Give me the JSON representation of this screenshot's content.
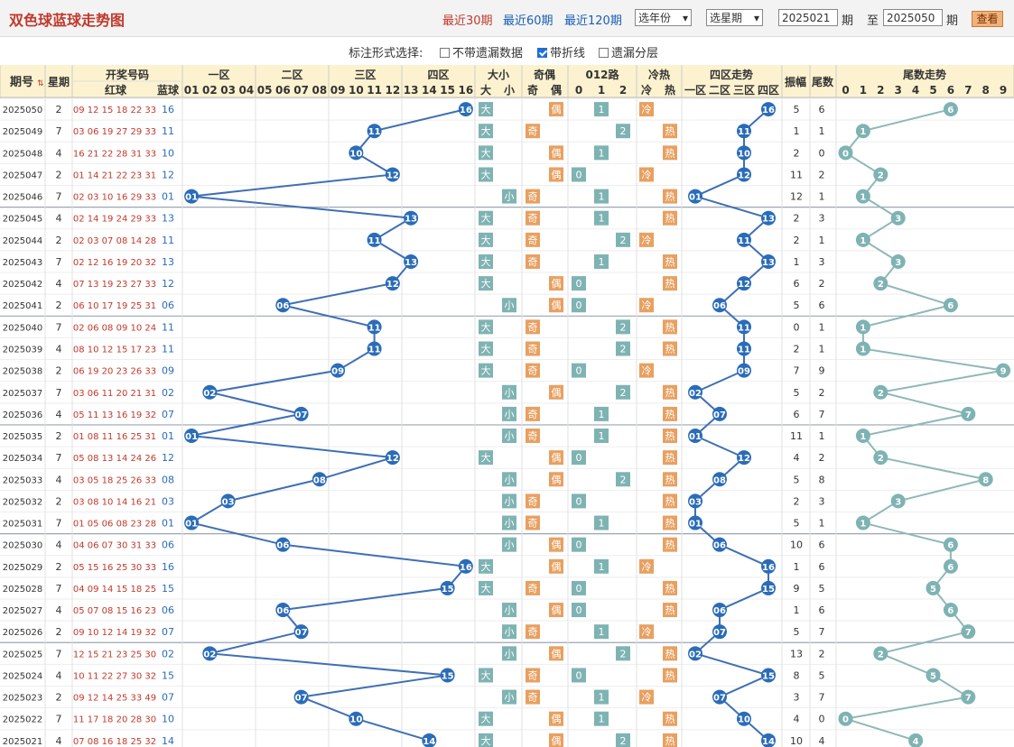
{
  "title": "双色球蓝球走势图",
  "ranges": [
    "最近30期",
    "最近60期",
    "最近120期"
  ],
  "active_range": 0,
  "year_select": "选年份",
  "week_select": "选星期",
  "from_period": "2025021",
  "to_period": "2025050",
  "period_unit": "期",
  "to_label": "至",
  "view_button": "查看",
  "mark_label": "标注形式选择:",
  "options": [
    {
      "label": "不带遗漏数据",
      "checked": false
    },
    {
      "label": "带折线",
      "checked": true
    },
    {
      "label": "遗漏分层",
      "checked": false
    }
  ],
  "colors": {
    "header_bg": "#fdf2d0",
    "accent_red": "#c0392b",
    "ball_blue": "#2a6cb8",
    "teal": "#7fb3b3",
    "orange": "#e8a060",
    "line_blue": "#3f6fb5",
    "line_teal": "#8fb8b8"
  },
  "headers": {
    "period": "期号",
    "week": "星期",
    "draw": "开奖号码",
    "red": "红球",
    "blue": "蓝球",
    "zone1": "一区",
    "zone2": "二区",
    "zone3": "三区",
    "zone4": "四区",
    "size": "大小",
    "parity": "奇偶",
    "road": "012路",
    "temp": "冷热",
    "zone_trend": "四区走势",
    "amplitude": "振幅",
    "tail": "尾数",
    "tail_trend": "尾数走势",
    "blue_numbers": [
      "01",
      "02",
      "03",
      "04",
      "05",
      "06",
      "07",
      "08",
      "09",
      "10",
      "11",
      "12",
      "13",
      "14",
      "15",
      "16"
    ],
    "size_labels": [
      "大",
      "小"
    ],
    "parity_labels": [
      "奇",
      "偶"
    ],
    "road_labels": [
      "0",
      "1",
      "2"
    ],
    "temp_labels": [
      "冷",
      "热"
    ],
    "zone_labels": [
      "一区",
      "二区",
      "三区",
      "四区"
    ],
    "tail_digits": [
      "0",
      "1",
      "2",
      "3",
      "4",
      "5",
      "6",
      "7",
      "8",
      "9"
    ]
  },
  "rows": [
    {
      "period": "2025050",
      "week": "2",
      "red": "09 12 15 18 22 33",
      "blue": "16",
      "amp": "5",
      "tail": "6"
    },
    {
      "period": "2025049",
      "week": "7",
      "red": "03 06 19 27 29 33",
      "blue": "11",
      "amp": "1",
      "tail": "1"
    },
    {
      "period": "2025048",
      "week": "4",
      "red": "16 21 22 28 31 33",
      "blue": "10",
      "amp": "2",
      "tail": "0"
    },
    {
      "period": "2025047",
      "week": "2",
      "red": "01 14 21 22 23 31",
      "blue": "12",
      "amp": "11",
      "tail": "2"
    },
    {
      "period": "2025046",
      "week": "7",
      "red": "02 03 10 16 29 33",
      "blue": "01",
      "amp": "12",
      "tail": "1"
    },
    {
      "period": "2025045",
      "week": "4",
      "red": "02 14 19 24 29 33",
      "blue": "13",
      "amp": "2",
      "tail": "3"
    },
    {
      "period": "2025044",
      "week": "2",
      "red": "02 03 07 08 14 28",
      "blue": "11",
      "amp": "2",
      "tail": "1"
    },
    {
      "period": "2025043",
      "week": "7",
      "red": "02 12 16 19 20 32",
      "blue": "13",
      "amp": "1",
      "tail": "3"
    },
    {
      "period": "2025042",
      "week": "4",
      "red": "07 13 19 23 27 33",
      "blue": "12",
      "amp": "6",
      "tail": "2"
    },
    {
      "period": "2025041",
      "week": "2",
      "red": "06 10 17 19 25 31",
      "blue": "06",
      "amp": "5",
      "tail": "6"
    },
    {
      "period": "2025040",
      "week": "7",
      "red": "02 06 08 09 10 24",
      "blue": "11",
      "amp": "0",
      "tail": "1"
    },
    {
      "period": "2025039",
      "week": "4",
      "red": "08 10 12 15 17 23",
      "blue": "11",
      "amp": "2",
      "tail": "1"
    },
    {
      "period": "2025038",
      "week": "2",
      "red": "06 19 20 23 26 33",
      "blue": "09",
      "amp": "7",
      "tail": "9"
    },
    {
      "period": "2025037",
      "week": "7",
      "red": "03 06 11 20 21 31",
      "blue": "02",
      "amp": "5",
      "tail": "2"
    },
    {
      "period": "2025036",
      "week": "4",
      "red": "05 11 13 16 19 32",
      "blue": "07",
      "amp": "6",
      "tail": "7"
    },
    {
      "period": "2025035",
      "week": "2",
      "red": "01 08 11 16 25 31",
      "blue": "01",
      "amp": "11",
      "tail": "1"
    },
    {
      "period": "2025034",
      "week": "7",
      "red": "05 08 13 14 24 26",
      "blue": "12",
      "amp": "4",
      "tail": "2"
    },
    {
      "period": "2025033",
      "week": "4",
      "red": "03 05 18 25 26 33",
      "blue": "08",
      "amp": "5",
      "tail": "8"
    },
    {
      "period": "2025032",
      "week": "2",
      "red": "03 08 10 14 16 21",
      "blue": "03",
      "amp": "2",
      "tail": "3"
    },
    {
      "period": "2025031",
      "week": "7",
      "red": "01 05 06 08 23 28",
      "blue": "01",
      "amp": "5",
      "tail": "1"
    },
    {
      "period": "2025030",
      "week": "4",
      "red": "04 06 07 30 31 33",
      "blue": "06",
      "amp": "10",
      "tail": "6"
    },
    {
      "period": "2025029",
      "week": "2",
      "red": "05 15 16 25 30 33",
      "blue": "16",
      "amp": "1",
      "tail": "6"
    },
    {
      "period": "2025028",
      "week": "7",
      "red": "04 09 14 15 18 25",
      "blue": "15",
      "amp": "9",
      "tail": "5"
    },
    {
      "period": "2025027",
      "week": "4",
      "red": "05 07 08 15 16 23",
      "blue": "06",
      "amp": "1",
      "tail": "6"
    },
    {
      "period": "2025026",
      "week": "2",
      "red": "09 10 12 14 19 32",
      "blue": "07",
      "amp": "5",
      "tail": "7"
    },
    {
      "period": "2025025",
      "week": "7",
      "red": "12 15 21 23 25 30",
      "blue": "02",
      "amp": "13",
      "tail": "2"
    },
    {
      "period": "2025024",
      "week": "4",
      "red": "10 11 22 27 30 32",
      "blue": "15",
      "amp": "8",
      "tail": "5"
    },
    {
      "period": "2025023",
      "week": "2",
      "red": "09 12 14 25 33 49",
      "blue": "07",
      "amp": "3",
      "tail": "7"
    },
    {
      "period": "2025022",
      "week": "7",
      "red": "11 17 18 20 28 30",
      "blue": "10",
      "amp": "4",
      "tail": "0"
    },
    {
      "period": "2025021",
      "week": "4",
      "red": "07 08 16 18 25 32",
      "blue": "14",
      "amp": "10",
      "tail": "4"
    }
  ]
}
